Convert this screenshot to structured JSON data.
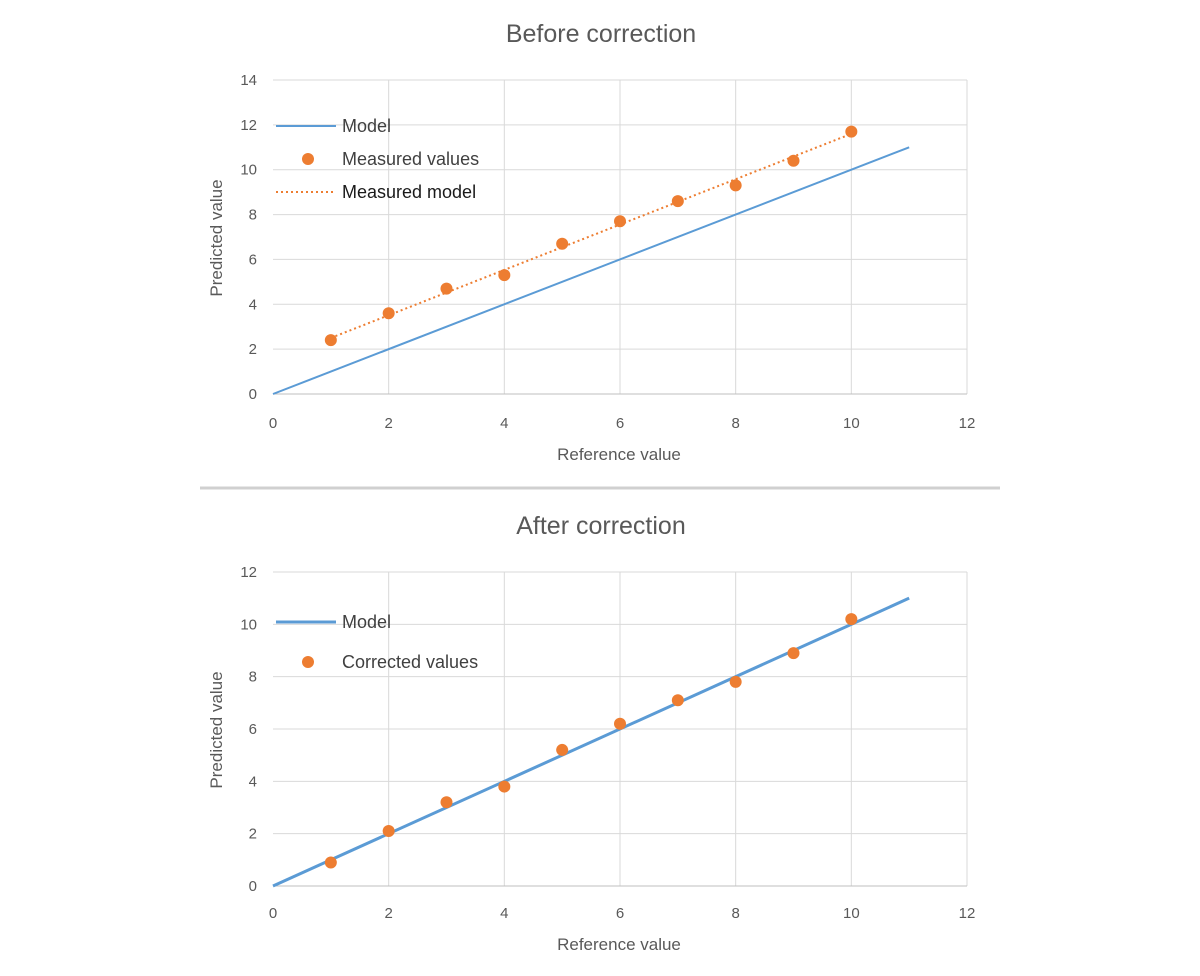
{
  "chart_data": [
    {
      "type": "scatter",
      "title": "Before correction",
      "xlabel": "Reference value",
      "ylabel": "Predicted value",
      "xlim": [
        0,
        12
      ],
      "ylim": [
        0,
        14
      ],
      "xticks": [
        "0",
        "2",
        "4",
        "6",
        "8",
        "10",
        "12"
      ],
      "yticks": [
        "0",
        "2",
        "4",
        "6",
        "8",
        "10",
        "12",
        "14"
      ],
      "grid": true,
      "legend_position": "top-left",
      "series": [
        {
          "name": "Model",
          "kind": "line",
          "style": "solid",
          "color": "#5b9bd5",
          "x": [
            0,
            11
          ],
          "y": [
            0,
            11
          ]
        },
        {
          "name": "Measured values",
          "kind": "scatter",
          "color": "#ed7d31",
          "x": [
            1,
            2,
            3,
            4,
            5,
            6,
            7,
            8,
            9,
            10
          ],
          "y": [
            2.4,
            3.6,
            4.7,
            5.3,
            6.7,
            7.7,
            8.6,
            9.3,
            10.4,
            11.7
          ]
        },
        {
          "name": "Measured model",
          "kind": "line",
          "style": "dotted",
          "color": "#ed7d31",
          "x": [
            1,
            10
          ],
          "y": [
            2.5,
            11.6
          ]
        }
      ]
    },
    {
      "type": "scatter",
      "title": "After correction",
      "xlabel": "Reference value",
      "ylabel": "Predicted value",
      "xlim": [
        0,
        12
      ],
      "ylim": [
        0,
        12
      ],
      "xticks": [
        "0",
        "2",
        "4",
        "6",
        "8",
        "10",
        "12"
      ],
      "yticks": [
        "0",
        "2",
        "4",
        "6",
        "8",
        "10",
        "12"
      ],
      "grid": true,
      "legend_position": "top-left",
      "series": [
        {
          "name": "Model",
          "kind": "line",
          "style": "solid",
          "color": "#5b9bd5",
          "x": [
            0,
            11
          ],
          "y": [
            0,
            11
          ]
        },
        {
          "name": "Corrected values",
          "kind": "scatter",
          "color": "#ed7d31",
          "x": [
            1,
            2,
            3,
            4,
            5,
            6,
            7,
            8,
            9,
            10
          ],
          "y": [
            0.9,
            2.1,
            3.2,
            3.8,
            5.2,
            6.2,
            7.1,
            7.8,
            8.9,
            10.2
          ]
        }
      ]
    }
  ]
}
